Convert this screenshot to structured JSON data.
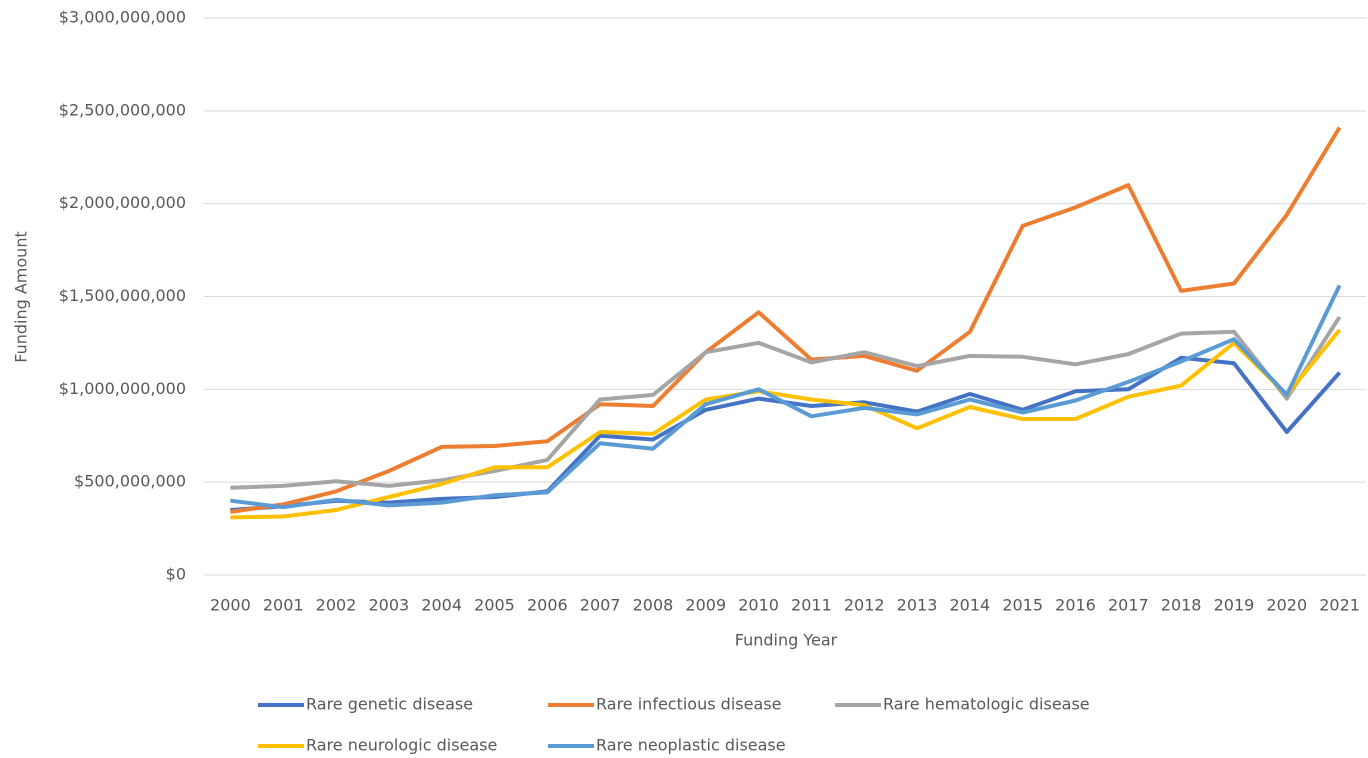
{
  "chart_data": {
    "type": "line",
    "xlabel": "Funding Year",
    "ylabel": "Funding Amount",
    "categories": [
      "2000",
      "2001",
      "2002",
      "2003",
      "2004",
      "2005",
      "2006",
      "2007",
      "2008",
      "2009",
      "2010",
      "2011",
      "2012",
      "2013",
      "2014",
      "2015",
      "2016",
      "2017",
      "2018",
      "2019",
      "2020",
      "2021"
    ],
    "series": [
      {
        "name": "Rare genetic disease",
        "color": "#4472c4",
        "values": [
          350000000,
          370000000,
          400000000,
          390000000,
          410000000,
          420000000,
          450000000,
          750000000,
          730000000,
          890000000,
          950000000,
          910000000,
          930000000,
          880000000,
          975000000,
          890000000,
          990000000,
          1000000000,
          1170000000,
          1140000000,
          770000000,
          1090000000
        ]
      },
      {
        "name": "Rare infectious disease",
        "color": "#ed7d31",
        "values": [
          340000000,
          380000000,
          450000000,
          560000000,
          690000000,
          695000000,
          720000000,
          920000000,
          910000000,
          1200000000,
          1415000000,
          1160000000,
          1180000000,
          1100000000,
          1310000000,
          1880000000,
          1980000000,
          2100000000,
          1530000000,
          1570000000,
          1940000000,
          2410000000
        ]
      },
      {
        "name": "Rare hematologic disease",
        "color": "#a5a5a5",
        "values": [
          470000000,
          480000000,
          505000000,
          480000000,
          510000000,
          560000000,
          620000000,
          945000000,
          970000000,
          1200000000,
          1250000000,
          1145000000,
          1200000000,
          1125000000,
          1180000000,
          1175000000,
          1135000000,
          1190000000,
          1300000000,
          1310000000,
          950000000,
          1390000000
        ]
      },
      {
        "name": "Rare neurologic disease",
        "color": "#ffc000",
        "values": [
          310000000,
          315000000,
          350000000,
          420000000,
          490000000,
          580000000,
          580000000,
          770000000,
          760000000,
          945000000,
          990000000,
          945000000,
          915000000,
          790000000,
          905000000,
          840000000,
          840000000,
          960000000,
          1020000000,
          1250000000,
          970000000,
          1320000000
        ]
      },
      {
        "name": "Rare neoplastic disease",
        "color": "#5b9bd5",
        "values": [
          400000000,
          365000000,
          405000000,
          375000000,
          390000000,
          430000000,
          445000000,
          710000000,
          680000000,
          920000000,
          1000000000,
          855000000,
          900000000,
          865000000,
          945000000,
          875000000,
          940000000,
          1040000000,
          1150000000,
          1270000000,
          970000000,
          1560000000
        ]
      }
    ],
    "ylim": [
      0,
      3000000000
    ],
    "yticks": [
      {
        "value": 0,
        "label": "$0"
      },
      {
        "value": 500000000,
        "label": "$500,000,000"
      },
      {
        "value": 1000000000,
        "label": "$1,000,000,000"
      },
      {
        "value": 1500000000,
        "label": "$1,500,000,000"
      },
      {
        "value": 2000000000,
        "label": "$2,000,000,000"
      },
      {
        "value": 2500000000,
        "label": "$2,500,000,000"
      },
      {
        "value": 3000000000,
        "label": "$3,000,000,000"
      }
    ],
    "grid": true,
    "legend": "bottom"
  }
}
